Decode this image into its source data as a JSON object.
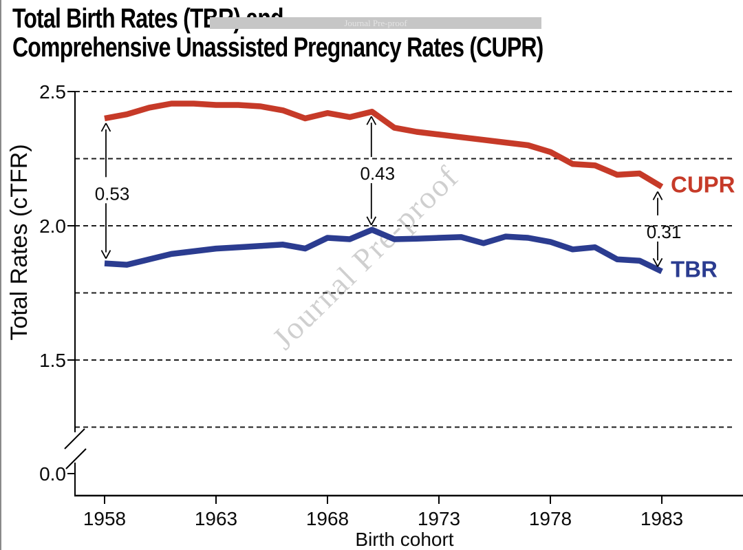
{
  "title": {
    "line1": "Total Birth Rates (TBR) and",
    "line2": "Comprehensive Unassisted Pregnancy Rates (CUPR)"
  },
  "banner": {
    "text": "Journal Pre-proof",
    "background": "#c6c6c6",
    "text_color": "#e4e4e4"
  },
  "watermark": {
    "text": "Journal Pre-proof",
    "color": "#c7c7c7"
  },
  "chart_data": {
    "type": "line",
    "title": "",
    "xlabel": "Birth cohort",
    "ylabel": "Total Rates (cTFR)",
    "x": [
      1958,
      1959,
      1960,
      1961,
      1962,
      1963,
      1964,
      1965,
      1966,
      1967,
      1968,
      1969,
      1970,
      1971,
      1972,
      1973,
      1974,
      1975,
      1976,
      1977,
      1978,
      1979,
      1980,
      1981,
      1982,
      1983
    ],
    "x_ticks": [
      1958,
      1963,
      1968,
      1973,
      1978,
      1983
    ],
    "y_ticks": [
      {
        "label": "2.5",
        "value": 2.5
      },
      {
        "label": "2.0",
        "value": 2.0
      },
      {
        "label": "1.5",
        "value": 1.5
      },
      {
        "label": "0.0",
        "value": 0.0
      }
    ],
    "grid_values": [
      2.5,
      2.25,
      2.0,
      1.75,
      1.5,
      1.25
    ],
    "grid_style": "dashed",
    "ylim": [
      0.0,
      2.5
    ],
    "axis_break": {
      "present": true,
      "between": [
        0.0,
        1.25
      ]
    },
    "legend_position": "right-end-labels",
    "series": [
      {
        "name": "CUPR",
        "color": "#c63a28",
        "values": [
          2.4,
          2.415,
          2.44,
          2.455,
          2.455,
          2.45,
          2.45,
          2.445,
          2.43,
          2.4,
          2.42,
          2.405,
          2.425,
          2.365,
          2.35,
          2.34,
          2.33,
          2.32,
          2.31,
          2.3,
          2.275,
          2.23,
          2.225,
          2.19,
          2.195,
          2.145
        ]
      },
      {
        "name": "TBR",
        "color": "#2b3c90",
        "values": [
          1.86,
          1.855,
          1.875,
          1.895,
          1.905,
          1.915,
          1.92,
          1.925,
          1.93,
          1.915,
          1.955,
          1.95,
          1.985,
          1.95,
          1.952,
          1.955,
          1.958,
          1.935,
          1.96,
          1.955,
          1.94,
          1.912,
          1.92,
          1.875,
          1.87,
          1.83
        ]
      }
    ],
    "annotations": [
      {
        "year": 1958,
        "label": "0.53",
        "dx": 2
      },
      {
        "year": 1970,
        "label": "0.43",
        "dx": -1
      },
      {
        "year": 1983,
        "label": "0.31",
        "dx": -6
      }
    ]
  }
}
